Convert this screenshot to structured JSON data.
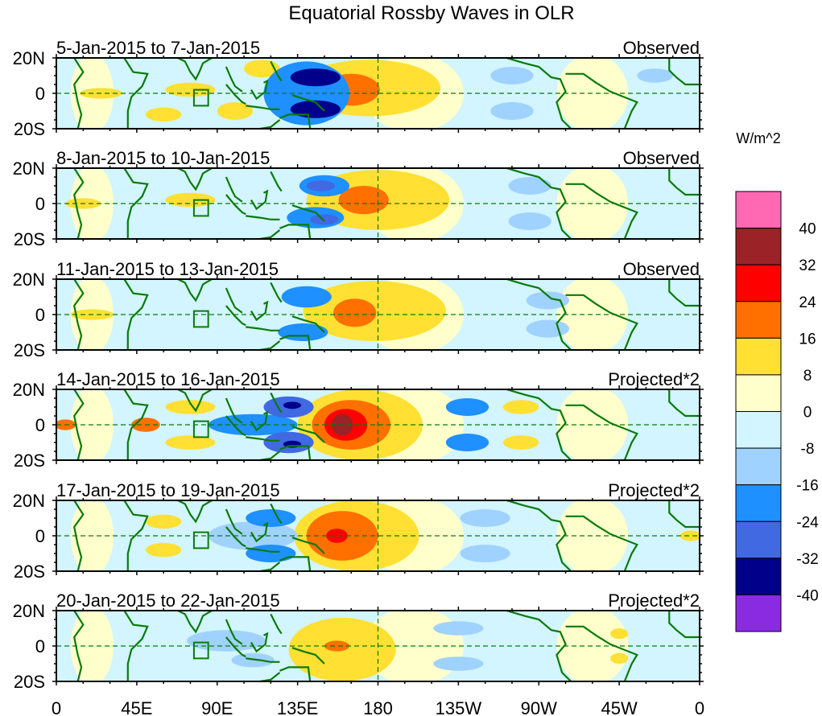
{
  "chart_data": {
    "type": "heatmap",
    "title": "Equatorial Rossby Waves in OLR",
    "colorbar": {
      "label": "W/m^2",
      "levels": [
        40,
        32,
        24,
        16,
        8,
        0,
        -8,
        -16,
        -24,
        -32,
        -40
      ],
      "colors_top_to_bottom": [
        "#ff69b4",
        "#9b2226",
        "#ff0000",
        "#ff7000",
        "#ffe033",
        "#ffffcc",
        "#d2f5ff",
        "#a0d2ff",
        "#1e90ff",
        "#4169e1",
        "#00008b",
        "#8a2be2"
      ]
    },
    "xaxis": {
      "ticks": [
        "0",
        "45E",
        "90E",
        "135E",
        "180",
        "135W",
        "90W",
        "45W",
        "0"
      ],
      "range_deg": [
        0,
        360
      ]
    },
    "yaxis": {
      "ticks": [
        "20N",
        "0",
        "20S"
      ],
      "range_deg": [
        -20,
        20
      ]
    },
    "panels": [
      {
        "label": "5-Jan-2015 to 7-Jan-2015",
        "type_label": "Observed",
        "blobs": [
          {
            "lon": 165,
            "lat": 2,
            "dlon": 16,
            "dlat": 9,
            "level": 16
          },
          {
            "lon": 175,
            "lat": 3,
            "dlon": 40,
            "dlat": 16,
            "level": 8
          },
          {
            "lon": 145,
            "lat": 9,
            "dlon": 14,
            "dlat": 5,
            "level": -32
          },
          {
            "lon": 145,
            "lat": -9,
            "dlon": 14,
            "dlat": 5,
            "level": -32
          },
          {
            "lon": 140,
            "lat": 0,
            "dlon": 24,
            "dlat": 18,
            "level": -16
          },
          {
            "lon": 100,
            "lat": -10,
            "dlon": 10,
            "dlat": 5,
            "level": 8
          },
          {
            "lon": 115,
            "lat": 14,
            "dlon": 10,
            "dlat": 5,
            "level": 8
          },
          {
            "lon": 75,
            "lat": 2,
            "dlon": 14,
            "dlat": 4,
            "level": 8
          },
          {
            "lon": 60,
            "lat": -12,
            "dlon": 10,
            "dlat": 4,
            "level": 8
          },
          {
            "lon": 25,
            "lat": 0,
            "dlon": 12,
            "dlat": 3,
            "level": 8
          },
          {
            "lon": 255,
            "lat": 10,
            "dlon": 12,
            "dlat": 5,
            "level": -8
          },
          {
            "lon": 255,
            "lat": -10,
            "dlon": 12,
            "dlat": 5,
            "level": -8
          },
          {
            "lon": 335,
            "lat": 10,
            "dlon": 10,
            "dlat": 4,
            "level": -8
          }
        ]
      },
      {
        "label": "8-Jan-2015 to 10-Jan-2015",
        "type_label": "Observed",
        "blobs": [
          {
            "lon": 180,
            "lat": 2,
            "dlon": 40,
            "dlat": 17,
            "level": 8
          },
          {
            "lon": 172,
            "lat": 2,
            "dlon": 14,
            "dlat": 8,
            "level": 16
          },
          {
            "lon": 150,
            "lat": 10,
            "dlon": 14,
            "dlat": 6,
            "level": -16
          },
          {
            "lon": 145,
            "lat": -8,
            "dlon": 16,
            "dlat": 6,
            "level": -16
          },
          {
            "lon": 148,
            "lat": 10,
            "dlon": 8,
            "dlat": 3,
            "level": -24
          },
          {
            "lon": 150,
            "lat": -9,
            "dlon": 8,
            "dlat": 3,
            "level": -24
          },
          {
            "lon": 75,
            "lat": 2,
            "dlon": 14,
            "dlat": 4,
            "level": 8
          },
          {
            "lon": 15,
            "lat": 0,
            "dlon": 10,
            "dlat": 3,
            "level": 8
          },
          {
            "lon": 265,
            "lat": 10,
            "dlon": 12,
            "dlat": 5,
            "level": -8
          },
          {
            "lon": 265,
            "lat": -10,
            "dlon": 12,
            "dlat": 5,
            "level": -8
          }
        ]
      },
      {
        "label": "11-Jan-2015 to 13-Jan-2015",
        "type_label": "Observed",
        "blobs": [
          {
            "lon": 178,
            "lat": 2,
            "dlon": 40,
            "dlat": 17,
            "level": 8
          },
          {
            "lon": 167,
            "lat": 1,
            "dlon": 12,
            "dlat": 8,
            "level": 16
          },
          {
            "lon": 140,
            "lat": 10,
            "dlon": 14,
            "dlat": 6,
            "level": -16
          },
          {
            "lon": 138,
            "lat": -10,
            "dlon": 14,
            "dlat": 5,
            "level": -16
          },
          {
            "lon": 20,
            "lat": 0,
            "dlon": 12,
            "dlat": 3,
            "level": 8
          },
          {
            "lon": 275,
            "lat": 8,
            "dlon": 12,
            "dlat": 5,
            "level": -8
          },
          {
            "lon": 275,
            "lat": -8,
            "dlon": 12,
            "dlat": 5,
            "level": -8
          }
        ]
      },
      {
        "label": "14-Jan-2015 to 16-Jan-2015",
        "type_label": "Projected*2",
        "blobs": [
          {
            "lon": 170,
            "lat": 0,
            "dlon": 35,
            "dlat": 20,
            "level": 8
          },
          {
            "lon": 165,
            "lat": 0,
            "dlon": 22,
            "dlat": 14,
            "level": 16
          },
          {
            "lon": 162,
            "lat": 0,
            "dlon": 12,
            "dlat": 9,
            "level": 24
          },
          {
            "lon": 160,
            "lat": 0,
            "dlon": 6,
            "dlat": 6,
            "level": 32
          },
          {
            "lon": 130,
            "lat": 10,
            "dlon": 14,
            "dlat": 6,
            "level": -24
          },
          {
            "lon": 130,
            "lat": -10,
            "dlon": 14,
            "dlat": 6,
            "level": -24
          },
          {
            "lon": 132,
            "lat": 11,
            "dlon": 5,
            "dlat": 2,
            "level": -32
          },
          {
            "lon": 132,
            "lat": -11,
            "dlon": 5,
            "dlat": 2,
            "level": -32
          },
          {
            "lon": 110,
            "lat": 0,
            "dlon": 25,
            "dlat": 6,
            "level": -16
          },
          {
            "lon": 230,
            "lat": 10,
            "dlon": 12,
            "dlat": 5,
            "level": -16
          },
          {
            "lon": 230,
            "lat": -10,
            "dlon": 12,
            "dlat": 5,
            "level": -16
          },
          {
            "lon": 260,
            "lat": 10,
            "dlon": 10,
            "dlat": 4,
            "level": 8
          },
          {
            "lon": 260,
            "lat": -10,
            "dlon": 10,
            "dlat": 4,
            "level": 8
          },
          {
            "lon": 50,
            "lat": 0,
            "dlon": 8,
            "dlat": 4,
            "level": 16
          },
          {
            "lon": 5,
            "lat": 0,
            "dlon": 6,
            "dlat": 3,
            "level": 16
          },
          {
            "lon": 75,
            "lat": 10,
            "dlon": 14,
            "dlat": 4,
            "level": 8
          },
          {
            "lon": 75,
            "lat": -10,
            "dlon": 14,
            "dlat": 4,
            "level": 8
          }
        ]
      },
      {
        "label": "17-Jan-2015 to 19-Jan-2015",
        "type_label": "Projected*2",
        "blobs": [
          {
            "lon": 168,
            "lat": 0,
            "dlon": 35,
            "dlat": 20,
            "level": 8
          },
          {
            "lon": 160,
            "lat": 0,
            "dlon": 20,
            "dlat": 14,
            "level": 16
          },
          {
            "lon": 157,
            "lat": 0,
            "dlon": 6,
            "dlat": 4,
            "level": 24
          },
          {
            "lon": 120,
            "lat": 10,
            "dlon": 14,
            "dlat": 5,
            "level": -16
          },
          {
            "lon": 120,
            "lat": -10,
            "dlon": 14,
            "dlat": 5,
            "level": -16
          },
          {
            "lon": 110,
            "lat": 0,
            "dlon": 25,
            "dlat": 8,
            "level": -8
          },
          {
            "lon": 240,
            "lat": 10,
            "dlon": 14,
            "dlat": 5,
            "level": -8
          },
          {
            "lon": 240,
            "lat": -10,
            "dlon": 14,
            "dlat": 5,
            "level": -8
          },
          {
            "lon": 60,
            "lat": 8,
            "dlon": 10,
            "dlat": 4,
            "level": 8
          },
          {
            "lon": 60,
            "lat": -8,
            "dlon": 10,
            "dlat": 4,
            "level": 8
          },
          {
            "lon": 355,
            "lat": 0,
            "dlon": 6,
            "dlat": 3,
            "level": 8
          }
        ]
      },
      {
        "label": "20-Jan-2015 to 22-Jan-2015",
        "type_label": "Projected*2",
        "blobs": [
          {
            "lon": 160,
            "lat": -2,
            "dlon": 30,
            "dlat": 18,
            "level": 8
          },
          {
            "lon": 157,
            "lat": 0,
            "dlon": 7,
            "dlat": 3,
            "level": 16
          },
          {
            "lon": 95,
            "lat": 3,
            "dlon": 22,
            "dlat": 6,
            "level": -8
          },
          {
            "lon": 110,
            "lat": -8,
            "dlon": 12,
            "dlat": 4,
            "level": -8
          },
          {
            "lon": 225,
            "lat": 10,
            "dlon": 14,
            "dlat": 4,
            "level": -8
          },
          {
            "lon": 225,
            "lat": -10,
            "dlon": 14,
            "dlat": 4,
            "level": -8
          },
          {
            "lon": 315,
            "lat": 7,
            "dlon": 5,
            "dlat": 3,
            "level": 8
          },
          {
            "lon": 315,
            "lat": -7,
            "dlon": 5,
            "dlat": 3,
            "level": 8
          }
        ]
      }
    ]
  }
}
